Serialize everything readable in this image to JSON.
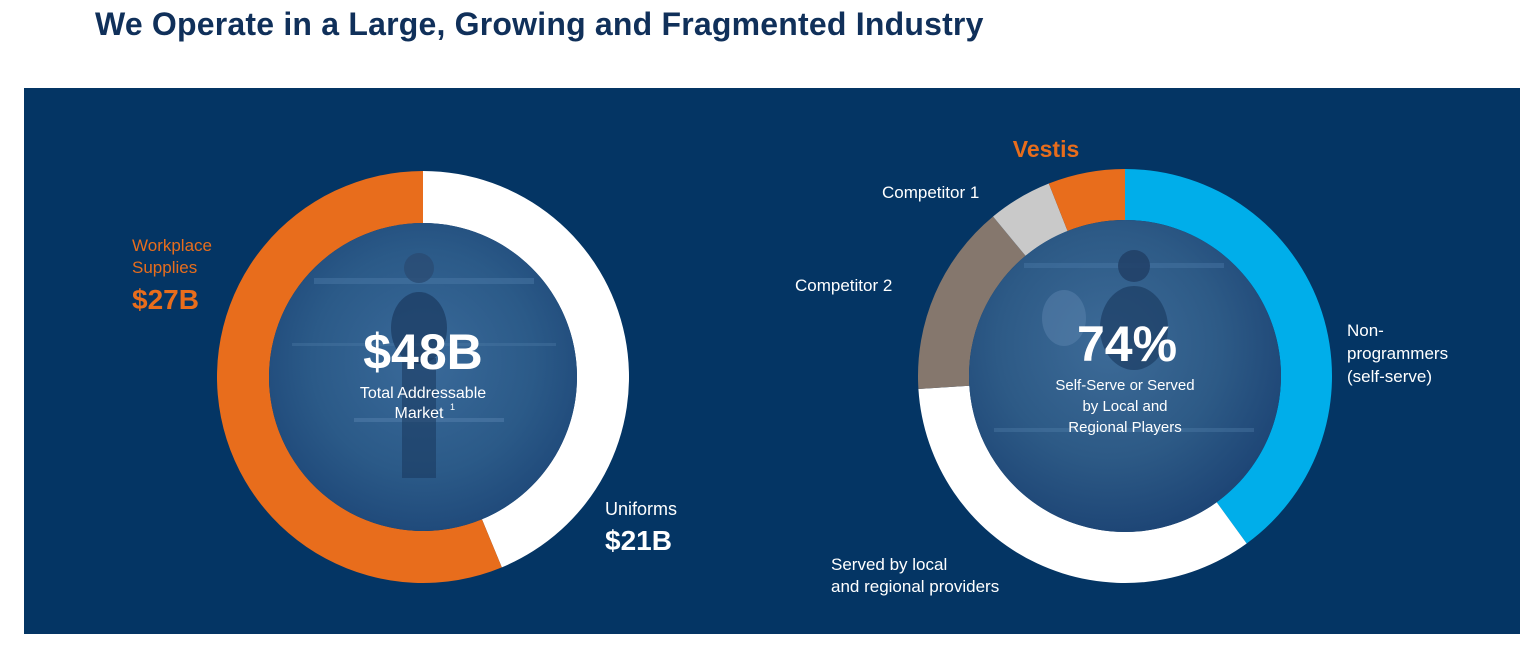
{
  "page": {
    "title": "We Operate in a Large, Growing and Fragmented Industry"
  },
  "colors": {
    "background": "#043564",
    "title": "#10305a",
    "orange": "#e86d1c",
    "white": "#ffffff",
    "light_blue": "#00aeea",
    "brown": "#85776d",
    "light_gray": "#c9c9c9"
  },
  "chart_data": [
    {
      "type": "donut",
      "title": "",
      "center": {
        "value": "$48B",
        "caption_line1": "Total Addressable",
        "caption_line2": "Market",
        "footnote": "1"
      },
      "series": [
        {
          "name": "Uniforms",
          "value": 21,
          "display": "$21B",
          "color": "#ffffff"
        },
        {
          "name": "Workplace Supplies",
          "value": 27,
          "display": "$27B",
          "color": "#e86d1c"
        }
      ],
      "labels": {
        "workplace_line1": "Workplace",
        "workplace_line2": "Supplies",
        "workplace_value": "$27B",
        "uniforms_line1": "Uniforms",
        "uniforms_value": "$21B"
      }
    },
    {
      "type": "donut",
      "title": "",
      "center": {
        "value": "74%",
        "caption_line1": "Self-Serve or Served",
        "caption_line2": "by Local and",
        "caption_line3": "Regional Players"
      },
      "series": [
        {
          "name": "Non-programmers (self-serve)",
          "value": 40,
          "color": "#00aeea"
        },
        {
          "name": "Served by local and regional providers",
          "value": 34,
          "color": "#ffffff"
        },
        {
          "name": "Competitor 2",
          "value": 15,
          "color": "#85776d"
        },
        {
          "name": "Competitor 1",
          "value": 5,
          "color": "#c9c9c9"
        },
        {
          "name": "Vestis",
          "value": 6,
          "color": "#e86d1c"
        }
      ],
      "labels": {
        "vestis": "Vestis",
        "competitor1": "Competitor 1",
        "competitor2": "Competitor 2",
        "nonprog_line1": "Non-",
        "nonprog_line2": "programmers",
        "nonprog_line3": "(self-serve)",
        "local_line1": "Served by local",
        "local_line2": "and regional providers"
      }
    }
  ]
}
